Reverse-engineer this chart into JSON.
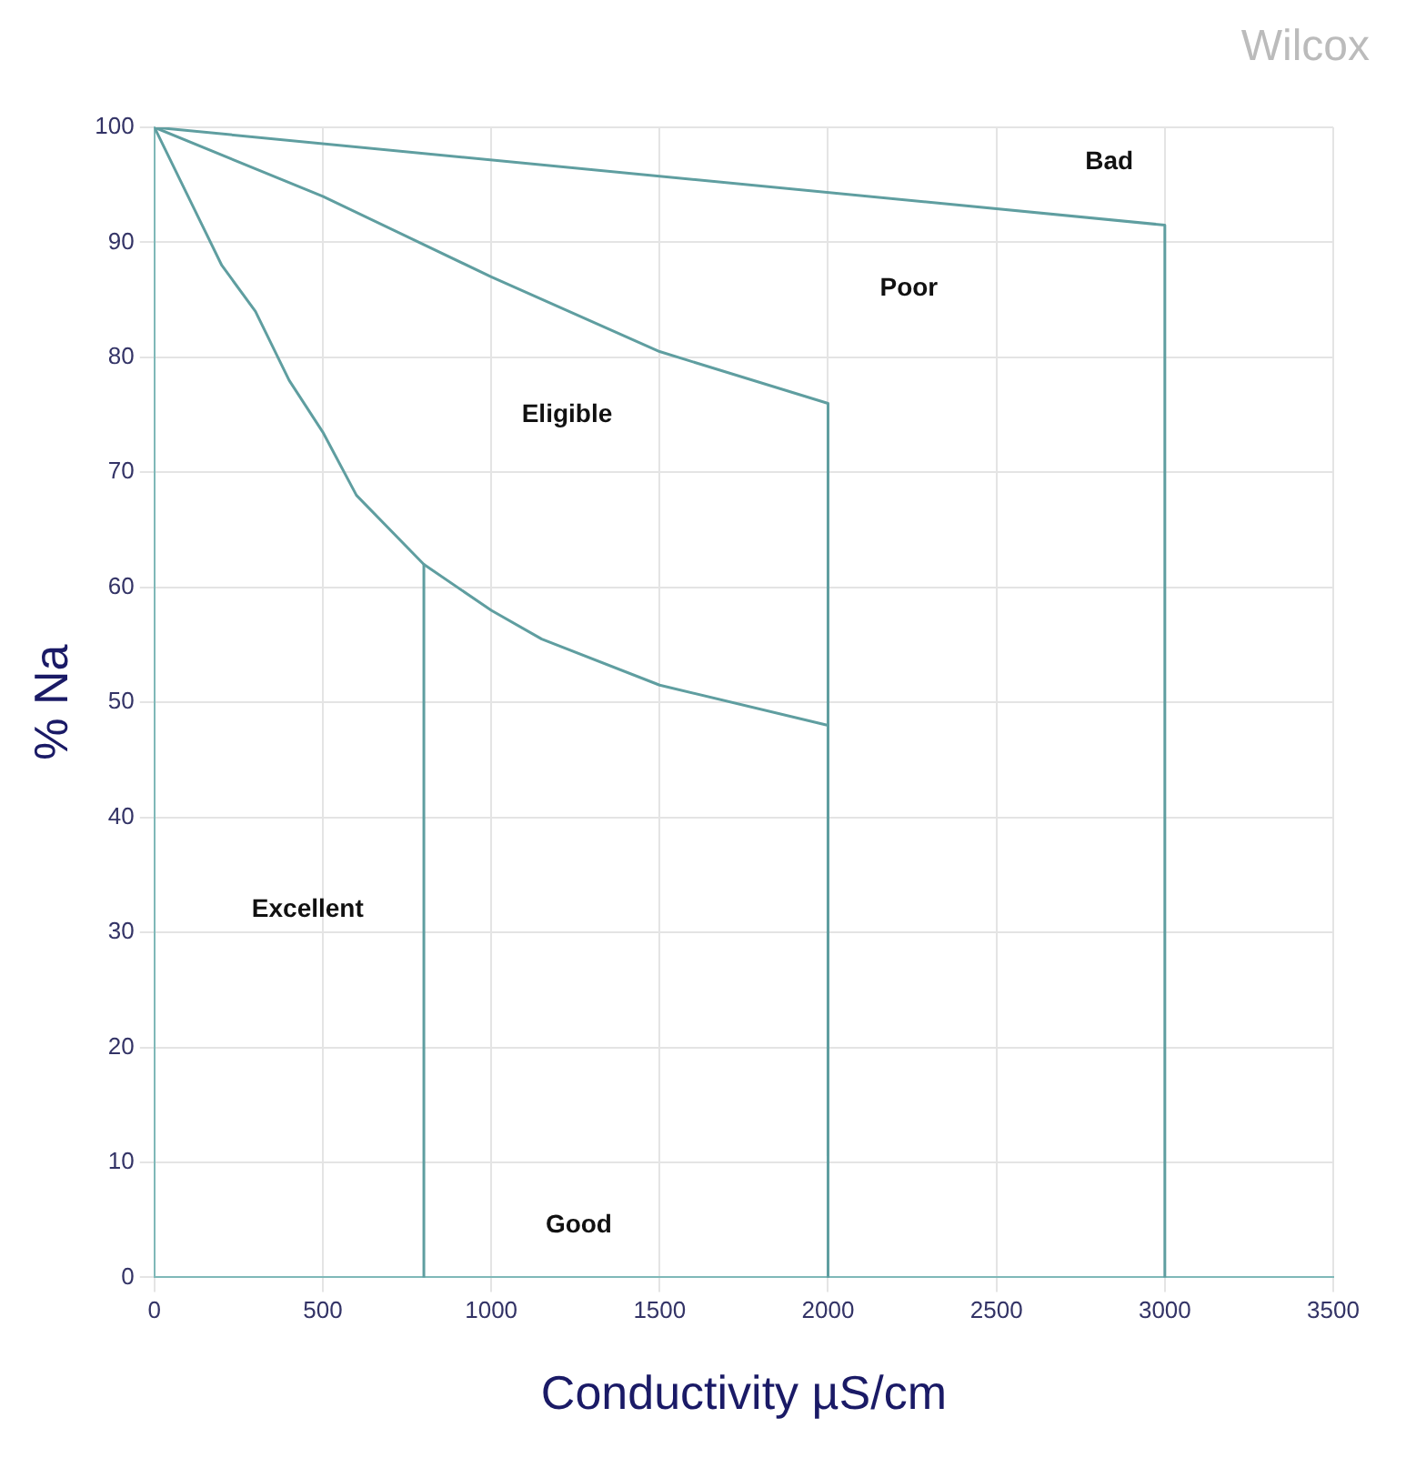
{
  "chart_data": {
    "type": "line",
    "title": "Wilcox",
    "xlabel": "Conductivity µS/cm",
    "ylabel": "% Na",
    "xlim": [
      0,
      3500
    ],
    "xticks": [
      0,
      500,
      1000,
      1500,
      2000,
      2500,
      3000,
      3500
    ],
    "ylim": [
      0,
      100
    ],
    "yticks": [
      0,
      10,
      20,
      30,
      40,
      50,
      60,
      70,
      80,
      90,
      100
    ],
    "grid": true,
    "legend": false,
    "marker": "none",
    "line_style": "solid",
    "series": [
      {
        "color": "#5f9ea0",
        "x": [
          0,
          3000,
          3000
        ],
        "values": [
          100,
          91.5,
          0
        ]
      },
      {
        "color": "#5f9ea0",
        "x": [
          0,
          500,
          1000,
          1500,
          2000,
          2000
        ],
        "values": [
          100,
          94,
          87,
          80.5,
          76,
          0
        ]
      },
      {
        "color": "#5f9ea0",
        "x": [
          0,
          100,
          200,
          300,
          400,
          500,
          600,
          800,
          1000,
          1150,
          1500,
          2000,
          2000
        ],
        "values": [
          100,
          94,
          88,
          84,
          78,
          73.5,
          68,
          62,
          58,
          55.5,
          51.5,
          48,
          0
        ]
      },
      {
        "color": "#5f9ea0",
        "x": [
          800,
          800
        ],
        "values": [
          62,
          0
        ]
      }
    ],
    "annotations": [
      "Bad",
      "Poor",
      "Eligible",
      "Excellent",
      "Good"
    ]
  }
}
